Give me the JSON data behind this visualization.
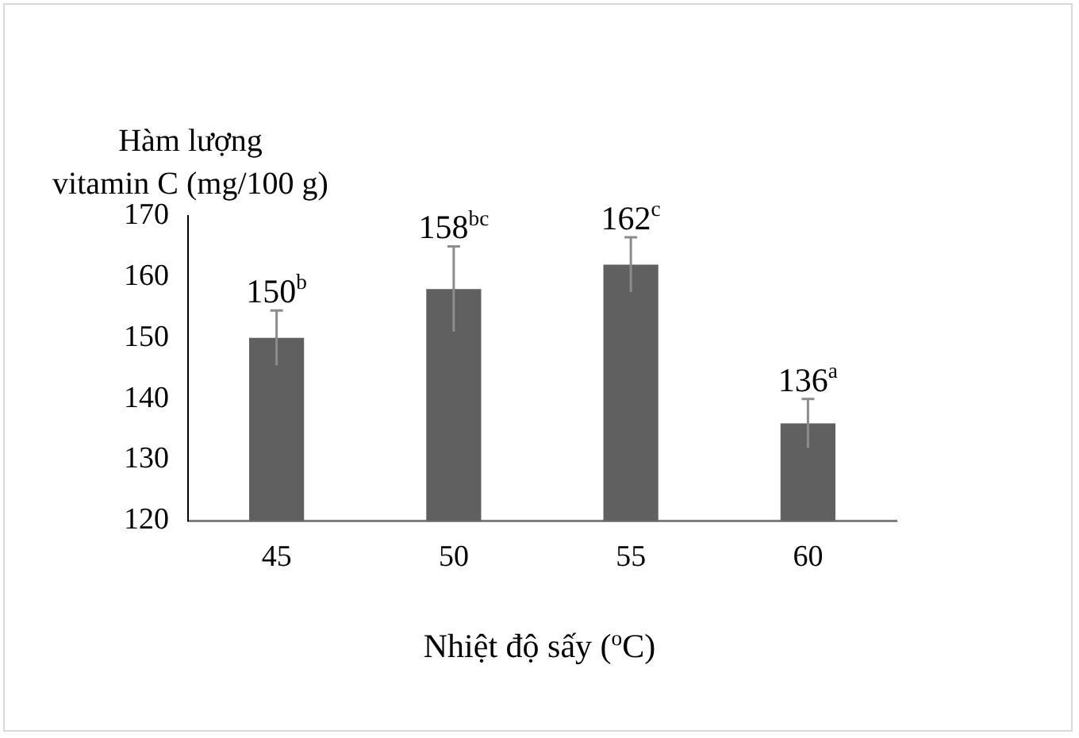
{
  "chart_data": {
    "type": "bar",
    "ylabel": "Hàm lượng\nvitamin C (mg/100 g)",
    "xlabel": "Nhiệt độ sấy ($^{o}$C)",
    "categories": [
      "45",
      "50",
      "55",
      "60"
    ],
    "values": [
      150,
      158,
      162,
      136
    ],
    "errors": [
      4.5,
      7,
      4.5,
      4
    ],
    "value_labels": [
      "150$^{b}$",
      "158$^{bc}$",
      "162$^{c}$",
      "136$^{a}$"
    ],
    "color": "#606060",
    "ylim": [
      120,
      170
    ],
    "yticks": [
      120,
      130,
      140,
      150,
      160,
      170
    ],
    "grid": false,
    "legend": false
  }
}
